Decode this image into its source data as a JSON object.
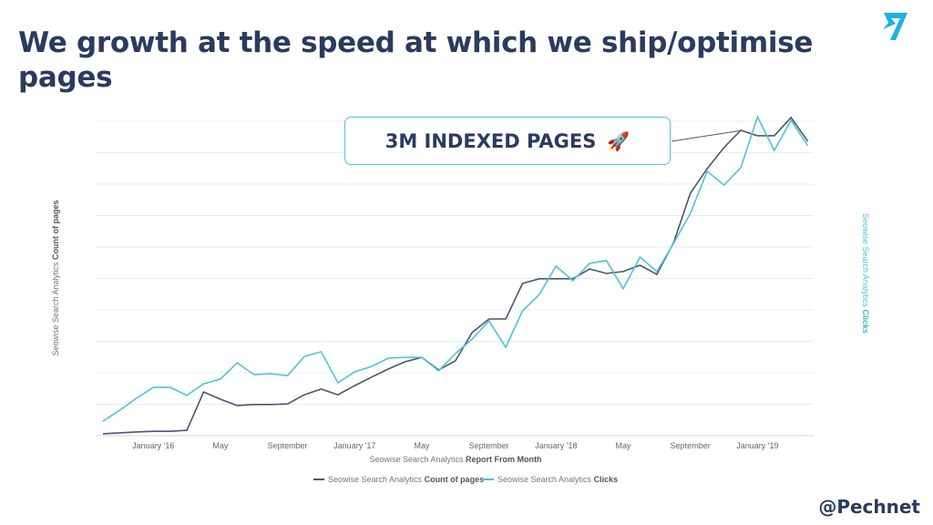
{
  "title": "We growth at the speed at which we ship/optimise pages",
  "annotation": {
    "text": "3M INDEXED PAGES",
    "icon": "rocket-icon"
  },
  "handle": "@Pechnet",
  "colors": {
    "title": "#2b3b5e",
    "pages": "#4a5670",
    "clicks": "#4ec3da",
    "accent": "#1fb0e6"
  },
  "chart_data": {
    "type": "line",
    "x": [
      "2015-10",
      "2015-11",
      "2015-12",
      "2016-01",
      "2016-02",
      "2016-03",
      "2016-04",
      "2016-05",
      "2016-06",
      "2016-07",
      "2016-08",
      "2016-09",
      "2016-10",
      "2016-11",
      "2016-12",
      "2017-01",
      "2017-02",
      "2017-03",
      "2017-04",
      "2017-05",
      "2017-06",
      "2017-07",
      "2017-08",
      "2017-09",
      "2017-10",
      "2017-11",
      "2017-12",
      "2018-01",
      "2018-02",
      "2018-03",
      "2018-04",
      "2018-05",
      "2018-06",
      "2018-07",
      "2018-08",
      "2018-09",
      "2018-10",
      "2018-11",
      "2018-12",
      "2019-01",
      "2019-02",
      "2019-03",
      "2019-04"
    ],
    "xticks": [
      {
        "x": "2016-01",
        "label": "January '16"
      },
      {
        "x": "2016-05",
        "label": "May"
      },
      {
        "x": "2016-09",
        "label": "September"
      },
      {
        "x": "2017-01",
        "label": "January '17"
      },
      {
        "x": "2017-05",
        "label": "May"
      },
      {
        "x": "2017-09",
        "label": "September"
      },
      {
        "x": "2018-01",
        "label": "January '18"
      },
      {
        "x": "2018-05",
        "label": "May"
      },
      {
        "x": "2018-09",
        "label": "September"
      },
      {
        "x": "2019-01",
        "label": "January '19"
      }
    ],
    "xlabel_prefix": "Seowise Search Analytics",
    "xlabel_bold": "Report From Month",
    "ylabel_left_prefix": "Seowise Search Analytics",
    "ylabel_left_bold": "Count of pages",
    "ylabel_right_prefix": "Seowise Search Analytics",
    "ylabel_right_bold": "Clicks",
    "ylim": [
      0,
      100
    ],
    "grid": true,
    "legend_placement": "bottom",
    "series": [
      {
        "name": "Seowise Search Analytics Count of pages",
        "legend_prefix": "Seowise Search Analytics",
        "legend_bold": "Count of pages",
        "color": "#4a5670",
        "values": [
          0.6,
          0.9,
          1.2,
          1.4,
          1.4,
          1.7,
          13.9,
          11.6,
          9.6,
          9.9,
          9.9,
          10.1,
          13.0,
          14.8,
          13.0,
          15.9,
          18.6,
          21.2,
          23.5,
          24.9,
          20.9,
          23.8,
          32.8,
          37.1,
          37.1,
          48.4,
          49.9,
          49.9,
          49.9,
          53.0,
          51.6,
          52.2,
          54.2,
          51.3,
          61.4,
          77.1,
          84.9,
          91.6,
          97.1,
          95.4,
          95.4,
          101.2,
          93.6
        ]
      },
      {
        "name": "Seowise Search Analytics Clicks",
        "legend_prefix": "Seowise Search Analytics",
        "legend_bold": "Clicks",
        "color": "#4ec3da",
        "values": [
          4.6,
          8.1,
          11.9,
          15.4,
          15.4,
          12.8,
          16.5,
          18.0,
          23.2,
          19.4,
          19.7,
          19.1,
          25.2,
          26.7,
          16.8,
          20.3,
          22.0,
          24.6,
          24.9,
          24.9,
          20.6,
          26.1,
          30.7,
          36.5,
          28.1,
          39.7,
          44.9,
          53.9,
          49.3,
          54.8,
          55.7,
          46.7,
          56.8,
          52.2,
          61.2,
          70.7,
          84.1,
          79.7,
          85.2,
          101.4,
          90.7,
          100.3,
          92.2
        ]
      }
    ]
  }
}
